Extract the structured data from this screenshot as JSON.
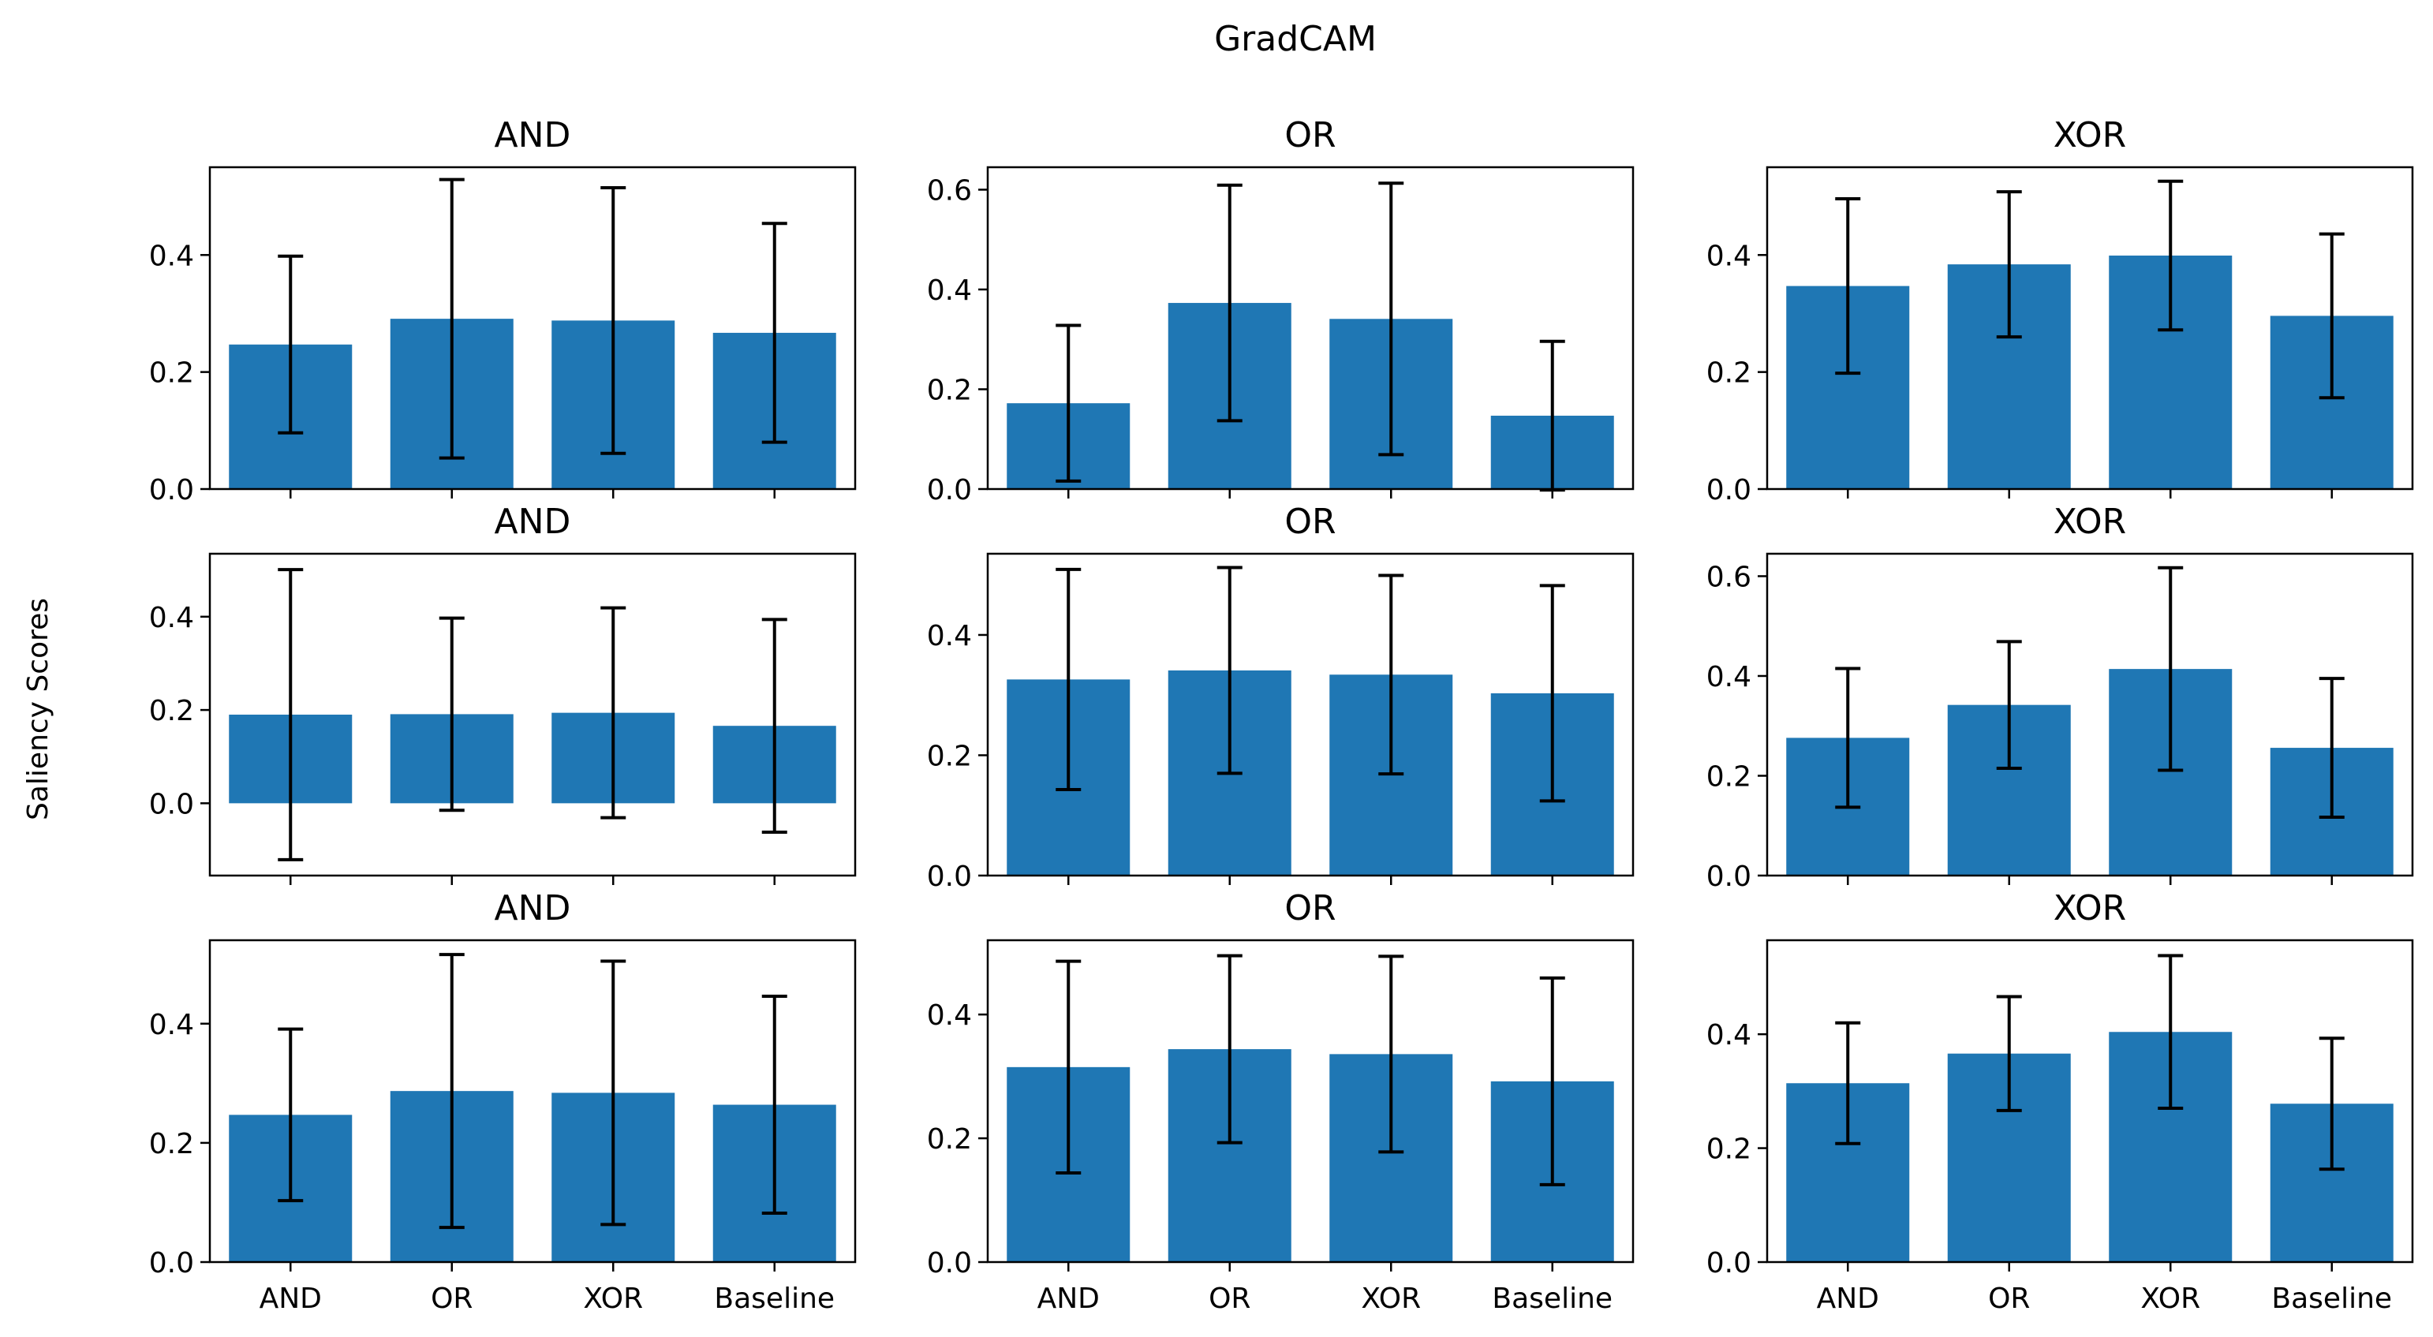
{
  "figure_title": "GradCAM",
  "y_axis_label": "Saliency Scores",
  "colors": {
    "bar": "#1f77b4",
    "errorbar": "#000000"
  },
  "chart_data": [
    {
      "type": "bar",
      "title": "AND",
      "categories": [
        "AND",
        "OR",
        "XOR",
        "Baseline"
      ],
      "values": [
        0.247,
        0.291,
        0.288,
        0.267
      ],
      "errors": [
        0.151,
        0.238,
        0.227,
        0.187
      ],
      "ylim": [
        0,
        0.55
      ],
      "yticks": [
        0.0,
        0.2,
        0.4
      ],
      "ytick_labels": [
        "0.0",
        "0.2",
        "0.4"
      ]
    },
    {
      "type": "bar",
      "title": "OR",
      "categories": [
        "AND",
        "OR",
        "XOR",
        "Baseline"
      ],
      "values": [
        0.172,
        0.373,
        0.341,
        0.147
      ],
      "errors": [
        0.156,
        0.236,
        0.272,
        0.149
      ],
      "ylim": [
        0,
        0.645
      ],
      "yticks": [
        0.0,
        0.2,
        0.4,
        0.6
      ],
      "ytick_labels": [
        "0.0",
        "0.2",
        "0.4",
        "0.6"
      ]
    },
    {
      "type": "bar",
      "title": "XOR",
      "categories": [
        "AND",
        "OR",
        "XOR",
        "Baseline"
      ],
      "values": [
        0.347,
        0.384,
        0.399,
        0.296
      ],
      "errors": [
        0.149,
        0.124,
        0.127,
        0.14
      ],
      "ylim": [
        0,
        0.55
      ],
      "yticks": [
        0.0,
        0.2,
        0.4
      ],
      "ytick_labels": [
        "0.0",
        "0.2",
        "0.4"
      ]
    },
    {
      "type": "bar",
      "title": "AND",
      "categories": [
        "AND",
        "OR",
        "XOR",
        "Baseline"
      ],
      "values": [
        0.19,
        0.191,
        0.194,
        0.166
      ],
      "errors": [
        0.311,
        0.206,
        0.225,
        0.228
      ],
      "ylim": [
        -0.155,
        0.535
      ],
      "yticks": [
        0.0,
        0.2,
        0.4
      ],
      "ytick_labels": [
        "0.0",
        "0.2",
        "0.4"
      ]
    },
    {
      "type": "bar",
      "title": "OR",
      "categories": [
        "AND",
        "OR",
        "XOR",
        "Baseline"
      ],
      "values": [
        0.326,
        0.341,
        0.334,
        0.303
      ],
      "errors": [
        0.183,
        0.171,
        0.165,
        0.179
      ],
      "ylim": [
        0,
        0.535
      ],
      "yticks": [
        0.0,
        0.2,
        0.4
      ],
      "ytick_labels": [
        "0.0",
        "0.2",
        "0.4"
      ]
    },
    {
      "type": "bar",
      "title": "XOR",
      "categories": [
        "AND",
        "OR",
        "XOR",
        "Baseline"
      ],
      "values": [
        0.276,
        0.342,
        0.414,
        0.256
      ],
      "errors": [
        0.139,
        0.127,
        0.203,
        0.139
      ],
      "ylim": [
        0,
        0.645
      ],
      "yticks": [
        0.0,
        0.2,
        0.4,
        0.6
      ],
      "ytick_labels": [
        "0.0",
        "0.2",
        "0.4",
        "0.6"
      ]
    },
    {
      "type": "bar",
      "title": "AND",
      "categories": [
        "AND",
        "OR",
        "XOR",
        "Baseline"
      ],
      "values": [
        0.247,
        0.287,
        0.284,
        0.264
      ],
      "errors": [
        0.144,
        0.229,
        0.221,
        0.182
      ],
      "ylim": [
        0,
        0.54
      ],
      "yticks": [
        0.0,
        0.2,
        0.4
      ],
      "ytick_labels": [
        "0.0",
        "0.2",
        "0.4"
      ]
    },
    {
      "type": "bar",
      "title": "OR",
      "categories": [
        "AND",
        "OR",
        "XOR",
        "Baseline"
      ],
      "values": [
        0.315,
        0.344,
        0.336,
        0.292
      ],
      "errors": [
        0.171,
        0.151,
        0.158,
        0.167
      ],
      "ylim": [
        0,
        0.52
      ],
      "yticks": [
        0.0,
        0.2,
        0.4
      ],
      "ytick_labels": [
        "0.0",
        "0.2",
        "0.4"
      ]
    },
    {
      "type": "bar",
      "title": "XOR",
      "categories": [
        "AND",
        "OR",
        "XOR",
        "Baseline"
      ],
      "values": [
        0.314,
        0.366,
        0.404,
        0.278
      ],
      "errors": [
        0.106,
        0.1,
        0.134,
        0.115
      ],
      "ylim": [
        0,
        0.565
      ],
      "yticks": [
        0.0,
        0.2,
        0.4
      ],
      "ytick_labels": [
        "0.0",
        "0.2",
        "0.4"
      ]
    }
  ]
}
